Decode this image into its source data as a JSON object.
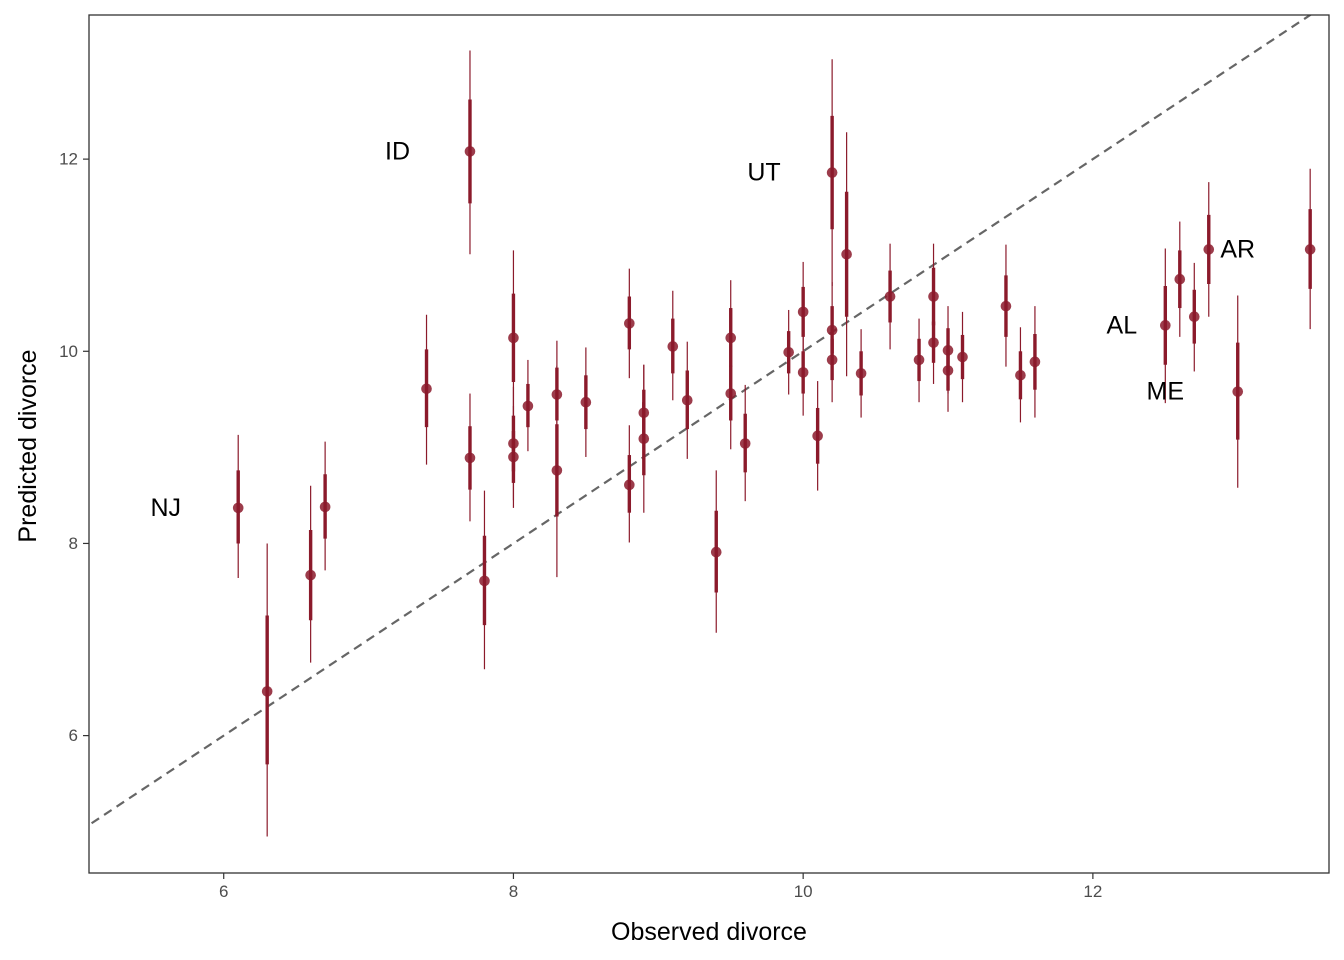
{
  "chart_data": {
    "type": "scatter",
    "xlabel": "Observed divorce",
    "ylabel": "Predicted divorce",
    "xlim": [
      5.07,
      13.63
    ],
    "ylim": [
      4.57,
      13.5
    ],
    "xticks": [
      6,
      8,
      10,
      12
    ],
    "yticks": [
      6,
      8,
      10,
      12
    ],
    "grid": false,
    "reference_line": {
      "type": "identity",
      "style": "dashed",
      "color": "#666666"
    },
    "point_color": "#8b1a2b",
    "points": [
      {
        "x": 6.1,
        "y": 8.37,
        "inner": [
          8.0,
          8.76
        ],
        "outer": [
          7.64,
          9.13
        ]
      },
      {
        "x": 6.3,
        "y": 6.46,
        "inner": [
          5.7,
          7.25
        ],
        "outer": [
          4.95,
          8.0
        ]
      },
      {
        "x": 6.6,
        "y": 7.67,
        "inner": [
          7.2,
          8.14
        ],
        "outer": [
          6.76,
          8.6
        ]
      },
      {
        "x": 6.7,
        "y": 8.38,
        "inner": [
          8.05,
          8.72
        ],
        "outer": [
          7.72,
          9.06
        ]
      },
      {
        "x": 7.4,
        "y": 9.61,
        "inner": [
          9.21,
          10.02
        ],
        "outer": [
          8.82,
          10.38
        ]
      },
      {
        "x": 7.7,
        "y": 12.08,
        "inner": [
          11.54,
          12.62
        ],
        "outer": [
          11.01,
          13.13
        ]
      },
      {
        "x": 7.7,
        "y": 8.89,
        "inner": [
          8.56,
          9.22
        ],
        "outer": [
          8.23,
          9.56
        ]
      },
      {
        "x": 7.8,
        "y": 7.61,
        "inner": [
          7.15,
          8.08
        ],
        "outer": [
          6.69,
          8.55
        ]
      },
      {
        "x": 8.0,
        "y": 10.14,
        "inner": [
          9.68,
          10.6
        ],
        "outer": [
          9.23,
          11.05
        ]
      },
      {
        "x": 8.0,
        "y": 9.04,
        "inner": [
          8.75,
          9.33
        ],
        "outer": [
          8.45,
          9.63
        ]
      },
      {
        "x": 8.0,
        "y": 8.9,
        "inner": [
          8.63,
          9.17
        ],
        "outer": [
          8.37,
          9.43
        ]
      },
      {
        "x": 8.1,
        "y": 9.43,
        "inner": [
          9.21,
          9.66
        ],
        "outer": [
          8.96,
          9.91
        ]
      },
      {
        "x": 8.3,
        "y": 9.55,
        "inner": [
          9.28,
          9.83
        ],
        "outer": [
          9.0,
          10.11
        ]
      },
      {
        "x": 8.3,
        "y": 8.76,
        "inner": [
          8.28,
          9.24
        ],
        "outer": [
          7.65,
          9.85
        ]
      },
      {
        "x": 8.5,
        "y": 9.47,
        "inner": [
          9.19,
          9.75
        ],
        "outer": [
          8.9,
          10.04
        ]
      },
      {
        "x": 8.8,
        "y": 10.29,
        "inner": [
          10.02,
          10.57
        ],
        "outer": [
          9.72,
          10.86
        ]
      },
      {
        "x": 8.8,
        "y": 8.61,
        "inner": [
          8.32,
          8.92
        ],
        "outer": [
          8.01,
          9.23
        ]
      },
      {
        "x": 8.9,
        "y": 9.36,
        "inner": [
          9.12,
          9.6
        ],
        "outer": [
          8.86,
          9.86
        ]
      },
      {
        "x": 8.9,
        "y": 9.09,
        "inner": [
          8.71,
          9.47
        ],
        "outer": [
          8.32,
          9.86
        ]
      },
      {
        "x": 9.1,
        "y": 10.05,
        "inner": [
          9.77,
          10.34
        ],
        "outer": [
          9.49,
          10.63
        ]
      },
      {
        "x": 9.2,
        "y": 9.49,
        "inner": [
          9.19,
          9.8
        ],
        "outer": [
          8.88,
          10.1
        ]
      },
      {
        "x": 9.4,
        "y": 7.91,
        "inner": [
          7.49,
          8.34
        ],
        "outer": [
          7.07,
          8.76
        ]
      },
      {
        "x": 9.5,
        "y": 10.14,
        "inner": [
          9.84,
          10.45
        ],
        "outer": [
          9.52,
          10.74
        ]
      },
      {
        "x": 9.5,
        "y": 9.56,
        "inner": [
          9.28,
          9.85
        ],
        "outer": [
          8.98,
          10.14
        ]
      },
      {
        "x": 9.6,
        "y": 9.04,
        "inner": [
          8.74,
          9.35
        ],
        "outer": [
          8.44,
          9.65
        ]
      },
      {
        "x": 9.9,
        "y": 9.99,
        "inner": [
          9.77,
          10.21
        ],
        "outer": [
          9.55,
          10.43
        ]
      },
      {
        "x": 10.0,
        "y": 10.41,
        "inner": [
          10.15,
          10.67
        ],
        "outer": [
          9.89,
          10.93
        ]
      },
      {
        "x": 10.0,
        "y": 9.78,
        "inner": [
          9.56,
          10.0
        ],
        "outer": [
          9.33,
          10.22
        ]
      },
      {
        "x": 10.1,
        "y": 9.12,
        "inner": [
          8.83,
          9.41
        ],
        "outer": [
          8.55,
          9.69
        ]
      },
      {
        "x": 10.2,
        "y": 11.86,
        "inner": [
          11.27,
          12.45
        ],
        "outer": [
          10.68,
          13.04
        ]
      },
      {
        "x": 10.2,
        "y": 10.22,
        "inner": [
          9.98,
          10.47
        ],
        "outer": [
          9.73,
          10.72
        ]
      },
      {
        "x": 10.2,
        "y": 9.91,
        "inner": [
          9.7,
          10.13
        ],
        "outer": [
          9.47,
          10.35
        ]
      },
      {
        "x": 10.3,
        "y": 11.01,
        "inner": [
          10.36,
          11.66
        ],
        "outer": [
          9.74,
          12.28
        ]
      },
      {
        "x": 10.4,
        "y": 9.77,
        "inner": [
          9.54,
          10.0
        ],
        "outer": [
          9.31,
          10.23
        ]
      },
      {
        "x": 10.6,
        "y": 10.57,
        "inner": [
          10.3,
          10.84
        ],
        "outer": [
          10.02,
          11.12
        ]
      },
      {
        "x": 10.8,
        "y": 9.91,
        "inner": [
          9.69,
          10.13
        ],
        "outer": [
          9.47,
          10.34
        ]
      },
      {
        "x": 10.9,
        "y": 10.57,
        "inner": [
          10.27,
          10.87
        ],
        "outer": [
          9.98,
          11.12
        ]
      },
      {
        "x": 10.9,
        "y": 10.09,
        "inner": [
          9.88,
          10.31
        ],
        "outer": [
          9.66,
          10.52
        ]
      },
      {
        "x": 11.0,
        "y": 10.01,
        "inner": [
          9.78,
          10.24
        ],
        "outer": [
          9.56,
          10.47
        ]
      },
      {
        "x": 11.0,
        "y": 9.8,
        "inner": [
          9.59,
          10.02
        ],
        "outer": [
          9.37,
          10.24
        ]
      },
      {
        "x": 11.1,
        "y": 9.94,
        "inner": [
          9.71,
          10.17
        ],
        "outer": [
          9.47,
          10.41
        ]
      },
      {
        "x": 11.4,
        "y": 10.47,
        "inner": [
          10.15,
          10.79
        ],
        "outer": [
          9.84,
          11.11
        ]
      },
      {
        "x": 11.5,
        "y": 9.75,
        "inner": [
          9.5,
          10.0
        ],
        "outer": [
          9.26,
          10.25
        ]
      },
      {
        "x": 11.6,
        "y": 9.89,
        "inner": [
          9.6,
          10.18
        ],
        "outer": [
          9.31,
          10.47
        ]
      },
      {
        "x": 12.5,
        "y": 10.27,
        "inner": [
          9.86,
          10.68
        ],
        "outer": [
          9.46,
          11.07
        ]
      },
      {
        "x": 12.6,
        "y": 10.75,
        "inner": [
          10.45,
          11.05
        ],
        "outer": [
          10.15,
          11.35
        ]
      },
      {
        "x": 12.7,
        "y": 10.36,
        "inner": [
          10.08,
          10.64
        ],
        "outer": [
          9.79,
          10.92
        ]
      },
      {
        "x": 12.8,
        "y": 11.06,
        "inner": [
          10.7,
          11.42
        ],
        "outer": [
          10.36,
          11.76
        ]
      },
      {
        "x": 13.0,
        "y": 9.58,
        "inner": [
          9.08,
          10.09
        ],
        "outer": [
          8.58,
          10.58
        ]
      },
      {
        "x": 13.5,
        "y": 11.06,
        "inner": [
          10.65,
          11.48
        ],
        "outer": [
          10.23,
          11.9
        ]
      }
    ],
    "annotations": [
      {
        "text": "ID",
        "x": 7.2,
        "y": 12.08
      },
      {
        "text": "UT",
        "x": 9.73,
        "y": 11.86
      },
      {
        "text": "NJ",
        "x": 5.6,
        "y": 8.37
      },
      {
        "text": "AR",
        "x": 13.0,
        "y": 11.06
      },
      {
        "text": "AL",
        "x": 12.2,
        "y": 10.27
      },
      {
        "text": "ME",
        "x": 12.5,
        "y": 9.58
      }
    ]
  }
}
